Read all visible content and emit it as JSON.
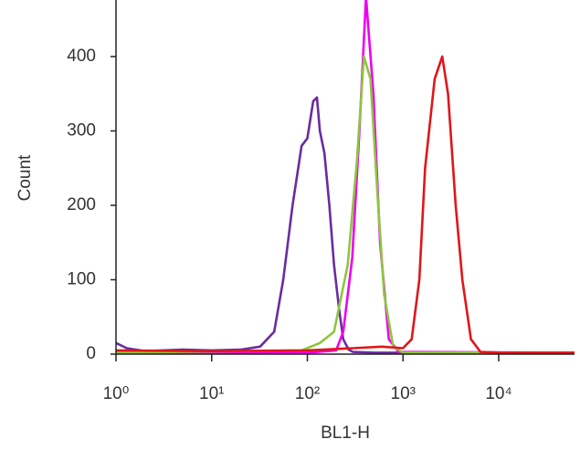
{
  "chart_data": {
    "type": "line",
    "x_label": "BL1-H",
    "y_label": "Count",
    "xscale": "log",
    "xlim": [
      1,
      62000
    ],
    "ylim": [
      0,
      476
    ],
    "xticks": [
      {
        "value": 1,
        "label": "10⁰"
      },
      {
        "value": 10,
        "label": "10¹"
      },
      {
        "value": 100,
        "label": "10²"
      },
      {
        "value": 1000,
        "label": "10³"
      },
      {
        "value": 10000,
        "label": "10⁴"
      }
    ],
    "yticks": [
      0,
      100,
      200,
      300,
      400
    ],
    "series": [
      {
        "color": "#6a2c9e",
        "x": [
          1,
          1.3,
          2,
          5,
          10,
          20,
          32,
          45,
          56,
          70,
          87,
          100,
          115,
          126,
          135,
          151,
          170,
          190,
          215,
          237,
          270,
          300,
          500,
          1000,
          10000,
          62000
        ],
        "values": [
          15,
          8,
          4,
          6,
          5,
          6,
          10,
          30,
          100,
          200,
          280,
          290,
          340,
          345,
          300,
          270,
          200,
          120,
          60,
          20,
          6,
          3,
          2,
          2,
          2,
          2
        ]
      },
      {
        "color": "#ee00ee",
        "x": [
          1,
          100,
          200,
          237,
          295,
          350,
          410,
          490,
          575,
          710,
          900,
          62000
        ],
        "values": [
          2,
          2,
          5,
          30,
          130,
          300,
          480,
          350,
          150,
          20,
          3,
          2
        ]
      },
      {
        "color": "#8dc63f",
        "x": [
          1,
          87,
          135,
          190,
          264,
          330,
          390,
          457,
          537,
          635,
          790,
          1000,
          62000
        ],
        "values": [
          2,
          5,
          15,
          30,
          120,
          260,
          400,
          370,
          220,
          80,
          10,
          2,
          2
        ]
      },
      {
        "color": "#e0161b",
        "x": [
          1,
          10,
          100,
          300,
          600,
          1000,
          1230,
          1480,
          1700,
          2140,
          2570,
          2950,
          3550,
          4170,
          5130,
          6460,
          10000,
          62000
        ],
        "values": [
          5,
          4,
          5,
          8,
          10,
          8,
          20,
          100,
          250,
          370,
          400,
          350,
          200,
          100,
          20,
          3,
          2,
          2
        ]
      }
    ]
  }
}
